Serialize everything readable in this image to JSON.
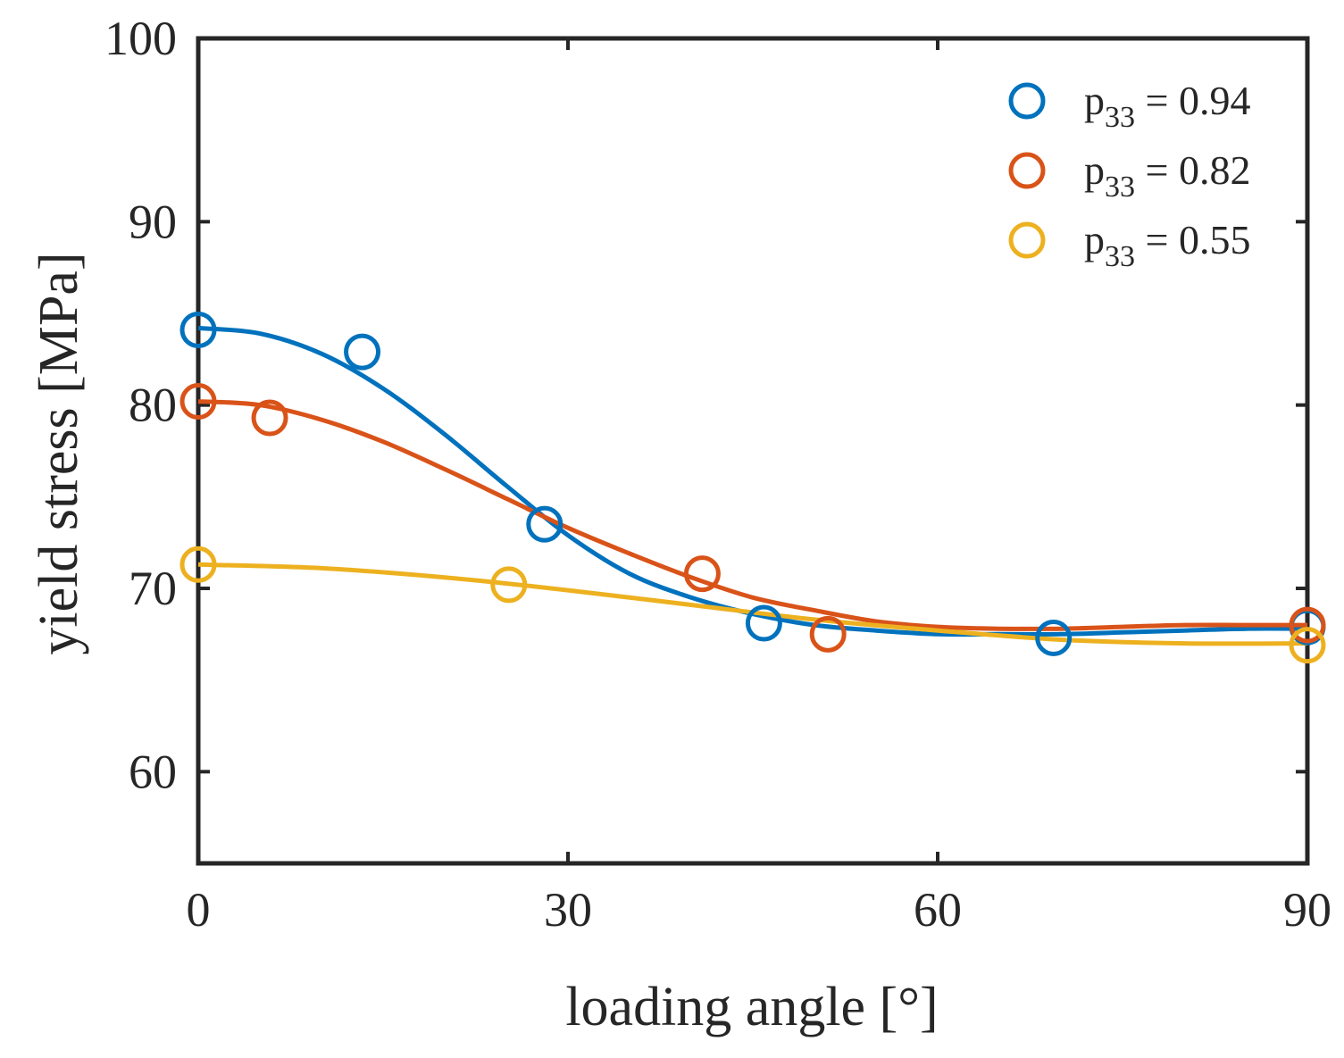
{
  "chart_data": {
    "type": "scatter",
    "title": "",
    "xlabel": "loading angle [°]",
    "ylabel": "yield stress [MPa]",
    "xlim": [
      0,
      90
    ],
    "ylim": [
      55,
      100
    ],
    "xticks": [
      0,
      30,
      60,
      90
    ],
    "yticks": [
      60,
      70,
      80,
      90,
      100
    ],
    "grid": false,
    "legend_position": "top-right",
    "series": [
      {
        "name": "p33 = 0.94",
        "legend_main": "p",
        "legend_sub": "33",
        "legend_value": " = 0.94",
        "color": "#0072BD",
        "points": [
          [
            0,
            84.1
          ],
          [
            13.3,
            82.9
          ],
          [
            28.1,
            73.5
          ],
          [
            45.9,
            68.1
          ],
          [
            69.4,
            67.3
          ],
          [
            90,
            67.9
          ]
        ],
        "fit": [
          [
            0,
            84.2
          ],
          [
            5,
            83.9
          ],
          [
            10,
            82.8
          ],
          [
            15,
            80.9
          ],
          [
            20,
            78.4
          ],
          [
            25,
            75.6
          ],
          [
            30,
            72.9
          ],
          [
            35,
            70.8
          ],
          [
            40,
            69.5
          ],
          [
            45,
            68.6
          ],
          [
            50,
            68.0
          ],
          [
            55,
            67.7
          ],
          [
            60,
            67.5
          ],
          [
            65,
            67.5
          ],
          [
            70,
            67.5
          ],
          [
            75,
            67.6
          ],
          [
            80,
            67.7
          ],
          [
            85,
            67.8
          ],
          [
            90,
            67.8
          ]
        ]
      },
      {
        "name": "p33 = 0.82",
        "legend_main": "p",
        "legend_sub": "33",
        "legend_value": " = 0.82",
        "color": "#D95319",
        "points": [
          [
            0,
            80.2
          ],
          [
            5.8,
            79.3
          ],
          [
            40.9,
            70.8
          ],
          [
            51.1,
            67.5
          ],
          [
            90,
            68.0
          ]
        ],
        "fit": [
          [
            0,
            80.2
          ],
          [
            5,
            80.0
          ],
          [
            10,
            79.2
          ],
          [
            15,
            78.0
          ],
          [
            20,
            76.5
          ],
          [
            25,
            74.9
          ],
          [
            30,
            73.3
          ],
          [
            35,
            71.9
          ],
          [
            40,
            70.6
          ],
          [
            45,
            69.5
          ],
          [
            50,
            68.8
          ],
          [
            55,
            68.2
          ],
          [
            60,
            67.9
          ],
          [
            65,
            67.8
          ],
          [
            70,
            67.8
          ],
          [
            75,
            67.9
          ],
          [
            80,
            68.0
          ],
          [
            85,
            68.0
          ],
          [
            90,
            68.0
          ]
        ]
      },
      {
        "name": "p33 = 0.55",
        "legend_main": "p",
        "legend_sub": "33",
        "legend_value": " = 0.55",
        "color": "#EDB120",
        "points": [
          [
            0,
            71.3
          ],
          [
            25.2,
            70.2
          ],
          [
            90,
            66.9
          ]
        ],
        "fit": [
          [
            0,
            71.3
          ],
          [
            10,
            71.1
          ],
          [
            20,
            70.6
          ],
          [
            30,
            69.9
          ],
          [
            40,
            69.1
          ],
          [
            50,
            68.3
          ],
          [
            60,
            67.7
          ],
          [
            70,
            67.2
          ],
          [
            80,
            67.0
          ],
          [
            90,
            67.0
          ]
        ]
      }
    ]
  }
}
